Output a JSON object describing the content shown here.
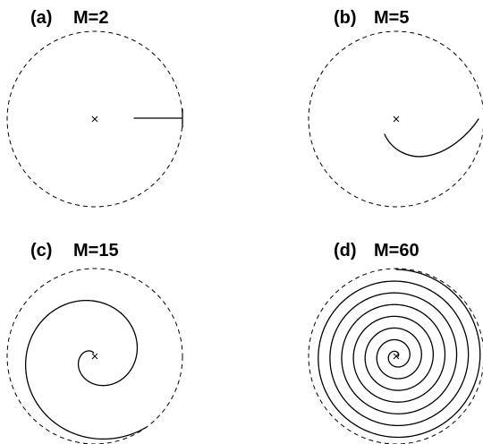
{
  "panels": [
    {
      "tag": "(a)",
      "label": "M=2"
    },
    {
      "tag": "(b)",
      "label": "M=5"
    },
    {
      "tag": "(c)",
      "label": "M=15"
    },
    {
      "tag": "(d)",
      "label": "M=60"
    }
  ],
  "center_marker": "×"
}
